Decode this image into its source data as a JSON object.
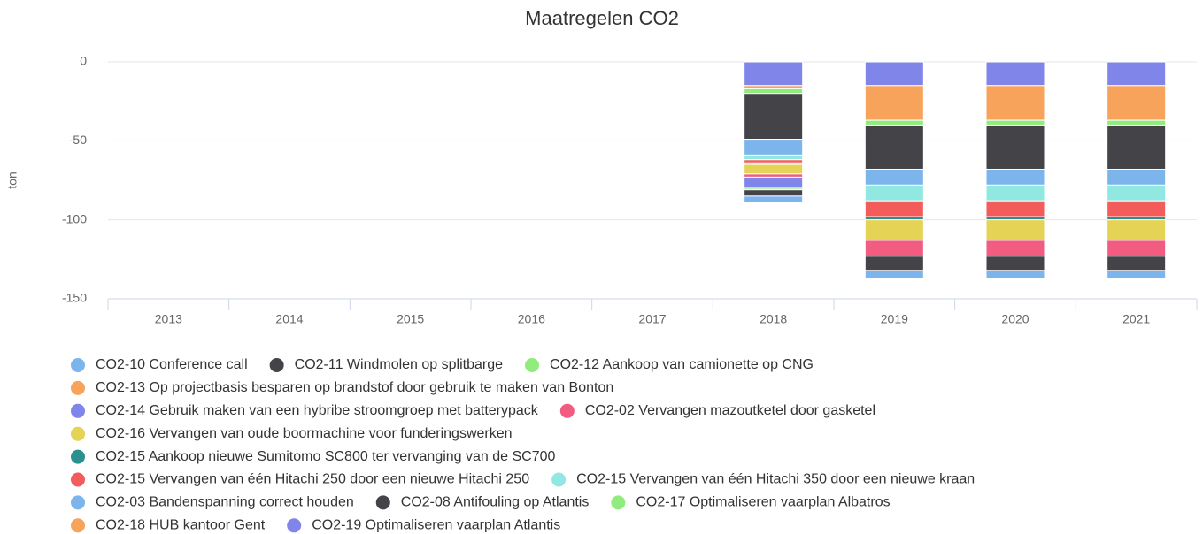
{
  "chart_data": {
    "type": "bar",
    "title": "Maatregelen CO2",
    "y_label": "ton",
    "stacked": true,
    "categories": [
      "2013",
      "2014",
      "2015",
      "2016",
      "2017",
      "2018",
      "2019",
      "2020",
      "2021"
    ],
    "ylim": [
      -150,
      0
    ],
    "yticks": [
      -150,
      -100,
      -50,
      0
    ],
    "grid": true,
    "series": [
      {
        "name": "CO2-10 Conference call",
        "color": "#7cb5ec",
        "values": [
          null,
          null,
          null,
          null,
          null,
          -4,
          -5,
          -5,
          -5
        ]
      },
      {
        "name": "CO2-11 Windmolen op splitbarge",
        "color": "#434348",
        "values": [
          null,
          null,
          null,
          null,
          null,
          -4,
          -9,
          -9,
          -9
        ]
      },
      {
        "name": "CO2-12 Aankoop van camionette op CNG",
        "color": "#90ed7d",
        "values": [
          null,
          null,
          null,
          null,
          null,
          -1,
          null,
          null,
          null
        ]
      },
      {
        "name": "CO2-13 Op projectbasis besparen op brandstof door gebruik te maken van Bonton",
        "color": "#f7a35c",
        "values": [
          null,
          null,
          null,
          null,
          null,
          null,
          null,
          null,
          null
        ]
      },
      {
        "name": "CO2-14 Gebruik maken van een hybribe stroomgroep met batterypack",
        "color": "#8085e9",
        "values": [
          null,
          null,
          null,
          null,
          null,
          -7,
          null,
          null,
          null
        ]
      },
      {
        "name": "CO2-02 Vervangen mazoutketel door gasketel",
        "color": "#f15c80",
        "values": [
          null,
          null,
          null,
          null,
          null,
          -2,
          -10,
          -10,
          -10
        ]
      },
      {
        "name": "CO2-16 Vervangen van oude boormachine voor funderingswerken",
        "color": "#e4d354",
        "values": [
          null,
          null,
          null,
          null,
          null,
          -6,
          -13,
          -13,
          -13
        ]
      },
      {
        "name": "CO2-15 Aankoop nieuwe Sumitomo SC800 ter vervanging van de SC700",
        "color": "#2b908f",
        "values": [
          null,
          null,
          null,
          null,
          null,
          -1,
          -2,
          -2,
          -2
        ]
      },
      {
        "name": "CO2-15 Vervangen van één Hitachi 250 door een nieuwe Hitachi 250",
        "color": "#f45b5b",
        "values": [
          null,
          null,
          null,
          null,
          null,
          -2,
          -10,
          -10,
          -10
        ]
      },
      {
        "name": "CO2-15 Vervangen van één Hitachi 350 door een nieuwe kraan",
        "color": "#91e8e1",
        "values": [
          null,
          null,
          null,
          null,
          null,
          -3,
          -10,
          -10,
          -10
        ]
      },
      {
        "name": "CO2-03 Bandenspanning correct houden",
        "color": "#7cb5ec",
        "values": [
          null,
          null,
          null,
          null,
          null,
          -10,
          -10,
          -10,
          -10
        ]
      },
      {
        "name": "CO2-08 Antifouling op Atlantis",
        "color": "#434348",
        "values": [
          null,
          null,
          null,
          null,
          null,
          -29,
          -28,
          -28,
          -28
        ]
      },
      {
        "name": "CO2-17 Optimaliseren vaarplan Albatros",
        "color": "#90ed7d",
        "values": [
          null,
          null,
          null,
          null,
          null,
          -3,
          -3,
          -3,
          -3
        ]
      },
      {
        "name": "CO2-18 HUB kantoor Gent",
        "color": "#f7a35c",
        "values": [
          null,
          null,
          null,
          null,
          null,
          -2,
          -22,
          -22,
          -22
        ]
      },
      {
        "name": "CO2-19 Optimaliseren vaarplan Atlantis",
        "color": "#8085e9",
        "values": [
          null,
          null,
          null,
          null,
          null,
          -15,
          -15,
          -15,
          -15
        ]
      }
    ]
  }
}
